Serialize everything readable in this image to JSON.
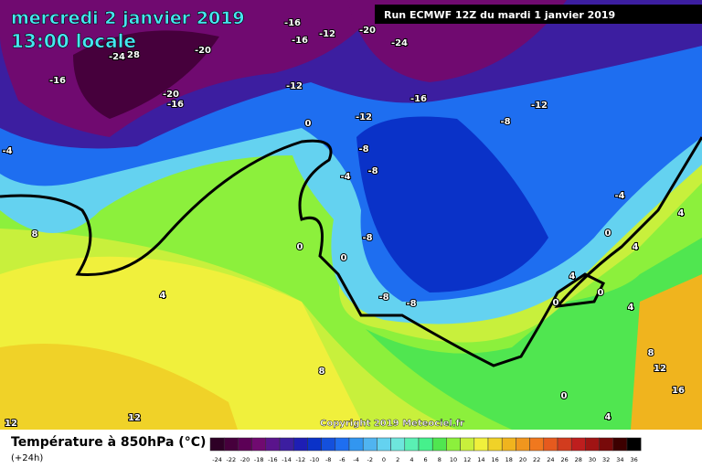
{
  "header": {
    "title": "mercredi 2 janvier 2019",
    "time": "13:00 locale",
    "run": "Run ECMWF 12Z du mardi 1 janvier 2019"
  },
  "footer": {
    "variable": "Température à 850hPa (°C)",
    "lead": "(+24h)",
    "copyright": "Copyright 2019 Meteociel.fr"
  },
  "map_labels": [
    "-16",
    "-16",
    "-12",
    "-20",
    "-24",
    "-20",
    "-24",
    "28",
    "-16",
    "-20",
    "-16",
    "-12",
    "-16",
    "-12",
    "-12",
    "-8",
    "0",
    "-4",
    "-8",
    "-8",
    "-4",
    "-4",
    "0",
    "0",
    "-8",
    "8",
    "4",
    "4",
    "0",
    "4",
    "0",
    "0",
    "4",
    "-8",
    "-8",
    "4",
    "8",
    "8",
    "12",
    "16",
    "12",
    "12",
    "0",
    "4"
  ],
  "scale": {
    "values": [
      -24,
      -22,
      -20,
      -18,
      -16,
      -14,
      -12,
      -10,
      -8,
      -6,
      -4,
      -2,
      0,
      2,
      4,
      6,
      8,
      10,
      12,
      14,
      16,
      18,
      20,
      22,
      24,
      26,
      28,
      30,
      32,
      34,
      36
    ],
    "colors": [
      "#2e0026",
      "#46003c",
      "#5c0056",
      "#700a70",
      "#5a148c",
      "#3c1ea0",
      "#1e1eb4",
      "#0a32c8",
      "#1450dc",
      "#1e6ef0",
      "#3296f0",
      "#50b4f0",
      "#64d2f0",
      "#6ee6dc",
      "#5af0b4",
      "#46f08c",
      "#50e650",
      "#8cf03c",
      "#c8f03c",
      "#f0f03c",
      "#f0d228",
      "#f0b41e",
      "#f0961e",
      "#f0781e",
      "#e65a1e",
      "#d23c1e",
      "#be1e1e",
      "#a01414",
      "#780a0a",
      "#3c0000",
      "#000000"
    ]
  }
}
